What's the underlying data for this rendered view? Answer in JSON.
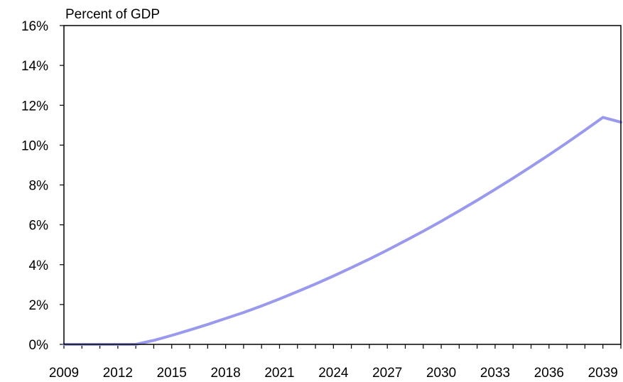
{
  "chart_data": {
    "type": "line",
    "title": "",
    "ylabel": "Percent of GDP",
    "xlabel": "",
    "xlim": [
      2009,
      2040
    ],
    "ylim": [
      0,
      16
    ],
    "x_ticks": [
      2009,
      2010,
      2011,
      2012,
      2013,
      2014,
      2015,
      2016,
      2017,
      2018,
      2019,
      2020,
      2021,
      2022,
      2023,
      2024,
      2025,
      2026,
      2027,
      2028,
      2029,
      2030,
      2031,
      2032,
      2033,
      2034,
      2035,
      2036,
      2037,
      2038,
      2039,
      2040
    ],
    "x_tick_labels": [
      "2009",
      "2012",
      "2015",
      "2018",
      "2021",
      "2024",
      "2027",
      "2030",
      "2033",
      "2036",
      "2039"
    ],
    "x_tick_label_values": [
      2009,
      2012,
      2015,
      2018,
      2021,
      2024,
      2027,
      2030,
      2033,
      2036,
      2039
    ],
    "y_ticks": [
      0,
      2,
      4,
      6,
      8,
      10,
      12,
      14,
      16
    ],
    "y_tick_labels": [
      "0%",
      "2%",
      "4%",
      "6%",
      "8%",
      "10%",
      "12%",
      "14%",
      "16%"
    ],
    "grid": false,
    "legend": "none",
    "series": [
      {
        "color": "#9999ee",
        "x": [
          2009,
          2010,
          2011,
          2012,
          2013,
          2014,
          2015,
          2016,
          2017,
          2018,
          2019,
          2020,
          2021,
          2022,
          2023,
          2024,
          2025,
          2026,
          2027,
          2028,
          2029,
          2030,
          2031,
          2032,
          2033,
          2034,
          2035,
          2036,
          2037,
          2038,
          2039,
          2040
        ],
        "values": [
          0,
          0,
          0,
          0,
          0,
          0.2,
          0.45,
          0.72,
          1.0,
          1.3,
          1.6,
          1.93,
          2.28,
          2.65,
          3.03,
          3.43,
          3.85,
          4.28,
          4.73,
          5.2,
          5.68,
          6.18,
          6.7,
          7.23,
          7.78,
          8.34,
          8.92,
          9.51,
          10.12,
          10.75,
          11.39,
          11.15
        ]
      }
    ]
  }
}
